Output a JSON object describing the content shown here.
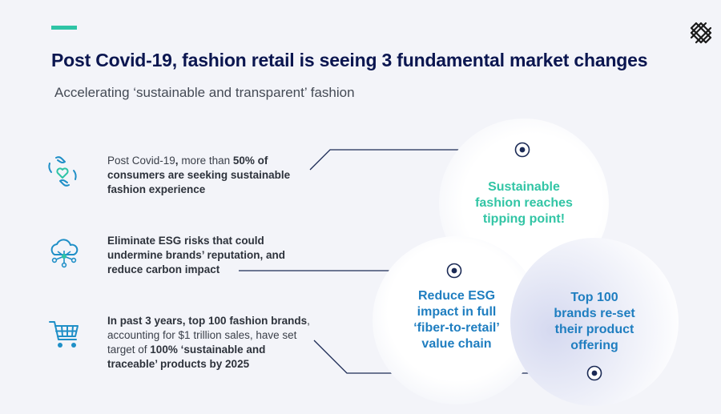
{
  "header": {
    "title": "Post Covid-19, fashion retail is seeing 3 fundamental market changes",
    "subtitle": "Accelerating ‘sustainable and transparent’ fashion"
  },
  "rows": [
    {
      "icon": "heart-hands-icon",
      "line1_pre": "Post Covid-19",
      "line1_comma": ",",
      "line1_mid": " more than ",
      "line1_bold": "50% of",
      "line2": "consumers are seeking sustainable",
      "line3": "fashion experience"
    },
    {
      "icon": "cloud-network-icon",
      "line1": "Eliminate ESG risks that could",
      "line2": "undermine brands’ reputation, and",
      "line3": "reduce carbon impact"
    },
    {
      "icon": "shopping-cart-icon",
      "line1": "In past 3 years, top 100 fashion brands",
      "line1_comma": ",",
      "line2": "accounting for $1 trillion sales, have set",
      "line3_pre": "target of ",
      "line3_bold": "100% ‘sustainable and",
      "line4": "traceable’ products by 2025"
    }
  ],
  "circles": {
    "top": [
      "Sustainable",
      "fashion reaches",
      "tipping point!"
    ],
    "left": [
      "Reduce ESG",
      "impact in full",
      "‘fiber-to-retail’",
      "value chain"
    ],
    "right": [
      "Top 100",
      "brands re-set",
      "their product",
      "offering"
    ]
  },
  "colors": {
    "navy": "#0b1650",
    "teal": "#2ec4a6",
    "blue": "#1f7ec0",
    "background": "#f3f4f9"
  }
}
